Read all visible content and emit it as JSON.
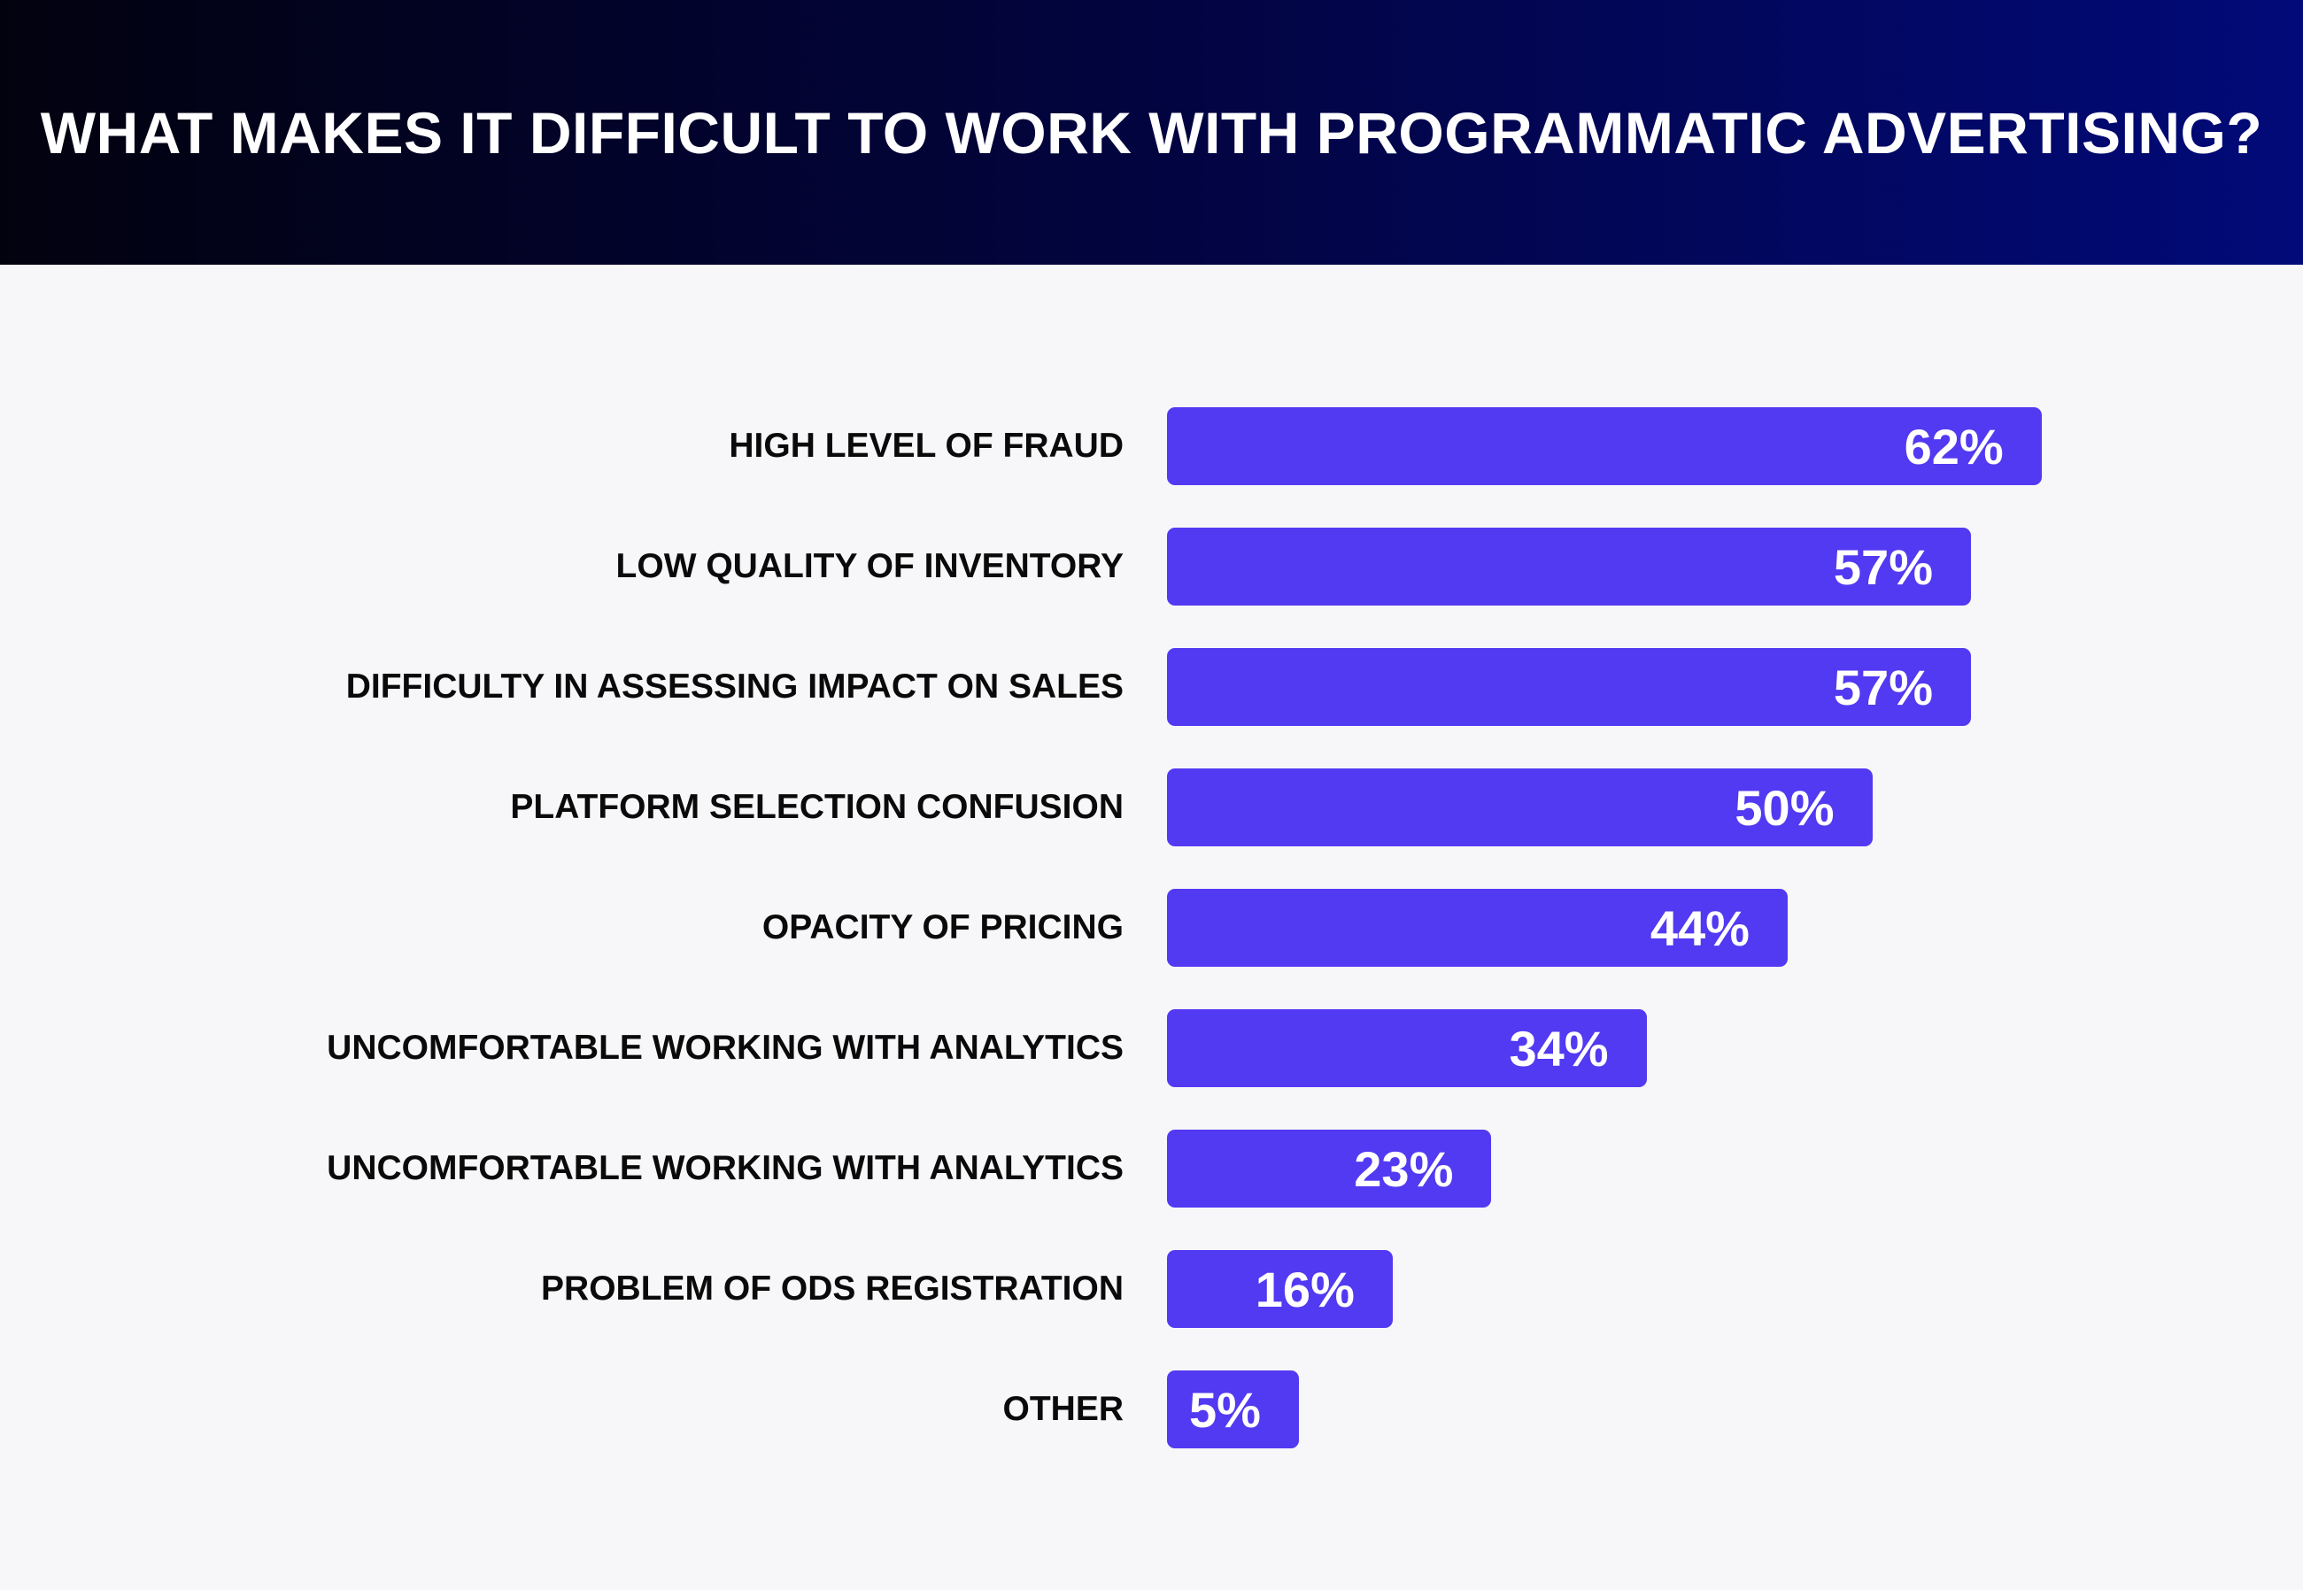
{
  "chart_data": {
    "type": "bar",
    "orientation": "horizontal",
    "title": "WHAT MAKES IT DIFFICULT TO WORK WITH PROGRAMMATIC ADVERTISING?",
    "categories": [
      "HIGH LEVEL OF FRAUD",
      "LOW QUALITY OF INVENTORY",
      "DIFFICULTY IN ASSESSING IMPACT ON SALES",
      "PLATFORM SELECTION CONFUSION",
      "OPACITY OF PRICING",
      "UNCOMFORTABLE WORKING WITH ANALYTICS",
      "UNCOMFORTABLE WORKING WITH ANALYTICS",
      "PROBLEM OF ODS REGISTRATION",
      "OTHER"
    ],
    "values": [
      62,
      57,
      57,
      50,
      44,
      34,
      23,
      16,
      5
    ],
    "data_labels": [
      "62%",
      "57%",
      "57%",
      "50%",
      "44%",
      "34%",
      "23%",
      "16%",
      "5%"
    ],
    "unit": "%",
    "xlim": [
      0,
      100
    ],
    "grid": false,
    "legend": "none",
    "colors": {
      "bar": "#5239f2",
      "header_start": "#02020f",
      "header_end": "#010a78",
      "background": "#f7f7f9"
    }
  }
}
